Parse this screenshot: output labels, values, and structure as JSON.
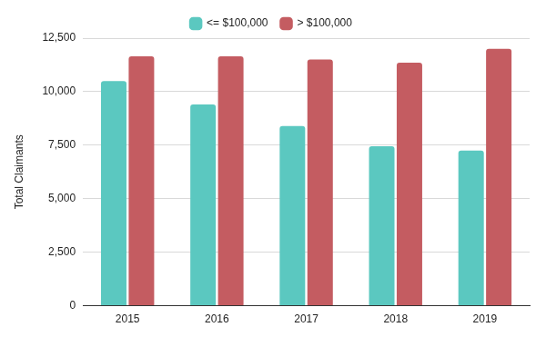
{
  "chart_data": {
    "type": "bar",
    "y_label": "Total Claimants",
    "categories": [
      "2015",
      "2016",
      "2017",
      "2018",
      "2019"
    ],
    "series": [
      {
        "name": "<= $100,000",
        "color": "#5bc8c0",
        "values": [
          10500,
          9400,
          8400,
          7450,
          7250
        ]
      },
      {
        "name": "> $100,000",
        "color": "#c45c61",
        "values": [
          11650,
          11650,
          11500,
          11350,
          12000
        ]
      }
    ],
    "ylim": [
      0,
      12500
    ],
    "yticks": [
      0,
      {
        "value": 2500,
        "label": "2,500"
      },
      {
        "value": 5000,
        "label": "5,000"
      },
      {
        "value": 7500,
        "label": "7,500"
      },
      {
        "value": 10000,
        "label": "10,000"
      },
      {
        "value": 12500,
        "label": "12,500"
      }
    ],
    "grid": true,
    "legend": "top"
  }
}
